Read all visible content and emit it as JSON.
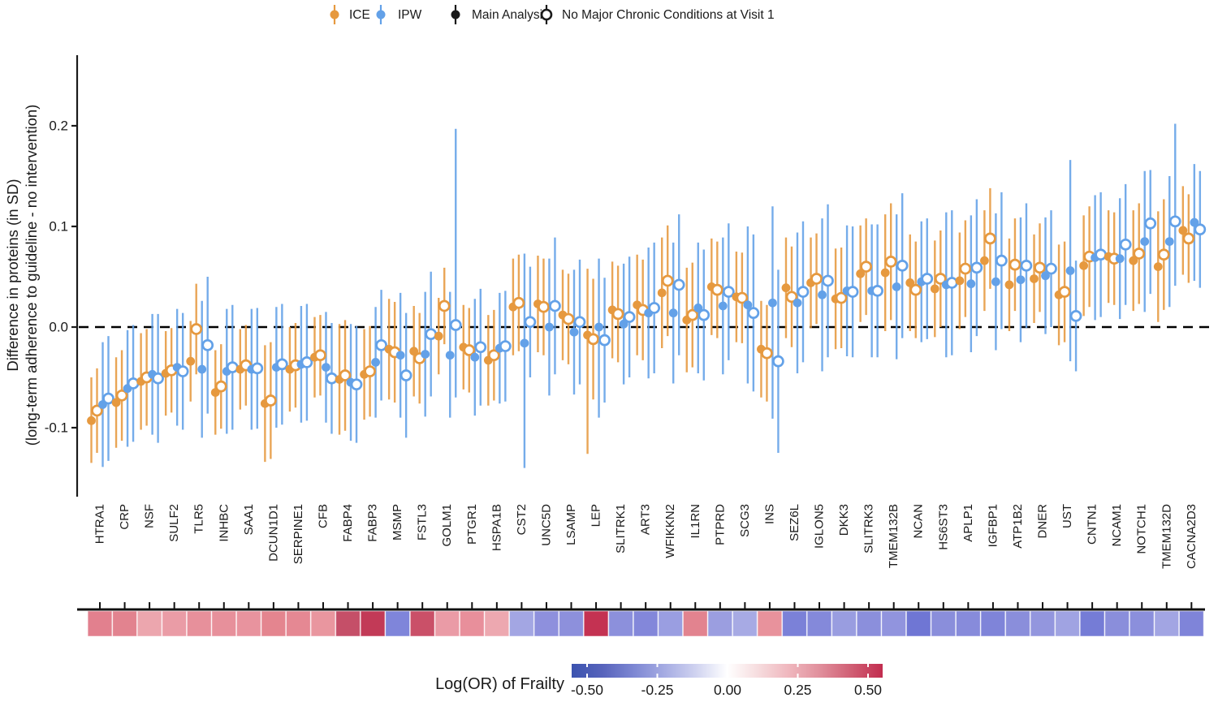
{
  "figure": {
    "legend": [
      {
        "label": "ICE",
        "color": "#E6993F",
        "variant": "filled-color"
      },
      {
        "label": "IPW",
        "color": "#63A1E8",
        "variant": "filled-color"
      },
      {
        "label": "Main Analysis",
        "color": "#1a1a1a",
        "variant": "filled-black"
      },
      {
        "label": "No Major Chronic Conditions at Visit 1",
        "color": "#1a1a1a",
        "variant": "open"
      }
    ],
    "y_axis": {
      "title_line1": "Difference in proteins (in SD)",
      "title_line2": "(long-term adherence to guideline - no intervention)"
    },
    "colorbar": {
      "title": "Log(OR) of Frailty",
      "tick_labels": [
        "-0.50",
        "-0.25",
        "0.00",
        "0.25",
        "0.50"
      ],
      "gradient": [
        "#3B53AF",
        "#5864BC",
        "#7D87D3",
        "#A6ACE3",
        "#D0D3F0",
        "#FFFFFF",
        "#F6DCDE",
        "#EFB6BD",
        "#E08E9B",
        "#D05E74",
        "#C22D4F"
      ]
    }
  },
  "chart_data": {
    "type": "scatter",
    "title": "",
    "xlabel": "",
    "ylabel": "Difference in proteins (in SD) (long-term adherence to guideline - no intervention)",
    "ylim": [
      -0.16,
      0.27
    ],
    "yticks": [
      0.2,
      0.1,
      0.0,
      -0.1
    ],
    "ytick_labels": [
      "0.2",
      "0.1",
      "0.0",
      "-0.1"
    ],
    "reference_line": 0.0,
    "grid": false,
    "legend_position": "top",
    "categories": [
      "HTRA1",
      "CRP",
      "NSF",
      "SULF2",
      "TLR5",
      "INHBC",
      "SAA1",
      "DCUN1D1",
      "SERPINE1",
      "CFB",
      "FABP4",
      "FABP3",
      "MSMP",
      "FSTL3",
      "GOLM1",
      "PTGR1",
      "HSPA1B",
      "CST2",
      "UNC5D",
      "LSAMP",
      "LEP",
      "SLITRK1",
      "ART3",
      "WFIKKN2",
      "IL1RN",
      "PTPRD",
      "SCG3",
      "INS",
      "SEZ6L",
      "IGLON5",
      "DKK3",
      "SLITRK3",
      "TMEM132B",
      "NCAN",
      "HS6ST3",
      "APLP1",
      "IGFBP1",
      "ATP1B2",
      "DNER",
      "UST",
      "CNTN1",
      "NCAM1",
      "NOTCH1",
      "TMEM132D",
      "CACNA2D3"
    ],
    "series": [
      {
        "name": "ICE — Main Analysis",
        "color": "#E6993F",
        "marker": "filled",
        "values": [
          -0.093,
          -0.075,
          -0.054,
          -0.046,
          -0.034,
          -0.065,
          -0.042,
          -0.076,
          -0.042,
          -0.03,
          -0.052,
          -0.047,
          -0.022,
          -0.024,
          -0.009,
          -0.02,
          -0.033,
          0.02,
          0.023,
          0.012,
          -0.008,
          0.017,
          0.022,
          0.034,
          0.007,
          0.04,
          0.03,
          -0.022,
          0.039,
          0.044,
          0.028,
          0.053,
          0.054,
          0.044,
          0.038,
          0.046,
          0.066,
          0.042,
          0.048,
          0.032,
          0.061,
          0.07,
          0.066,
          0.06,
          0.096
        ],
        "ci_low": [
          -0.135,
          -0.12,
          -0.102,
          -0.088,
          -0.074,
          -0.107,
          -0.082,
          -0.134,
          -0.084,
          -0.07,
          -0.107,
          -0.092,
          -0.072,
          -0.069,
          -0.047,
          -0.062,
          -0.078,
          -0.028,
          -0.025,
          -0.033,
          -0.126,
          -0.031,
          -0.028,
          -0.021,
          -0.045,
          -0.008,
          -0.015,
          -0.07,
          -0.011,
          -0.001,
          -0.022,
          0.005,
          -0.004,
          -0.004,
          -0.01,
          -0.002,
          0.016,
          -0.004,
          0.004,
          -0.018,
          0.011,
          0.024,
          0.016,
          0.005,
          0.052
        ],
        "ci_high": [
          -0.05,
          -0.03,
          -0.006,
          -0.004,
          0.006,
          -0.023,
          -0.002,
          -0.018,
          0.0,
          0.01,
          0.003,
          -0.002,
          0.028,
          0.021,
          0.029,
          0.022,
          0.012,
          0.068,
          0.071,
          0.057,
          0.058,
          0.065,
          0.072,
          0.089,
          0.059,
          0.088,
          0.075,
          0.026,
          0.089,
          0.089,
          0.078,
          0.101,
          0.112,
          0.092,
          0.086,
          0.094,
          0.116,
          0.088,
          0.092,
          0.082,
          0.111,
          0.116,
          0.116,
          0.115,
          0.14
        ]
      },
      {
        "name": "ICE — No Major Chronic Conditions at Visit 1",
        "color": "#E6993F",
        "marker": "open",
        "values": [
          -0.083,
          -0.068,
          -0.05,
          -0.043,
          -0.002,
          -0.059,
          -0.038,
          -0.073,
          -0.038,
          -0.028,
          -0.048,
          -0.044,
          -0.025,
          -0.031,
          0.021,
          -0.023,
          -0.028,
          0.024,
          0.02,
          0.008,
          -0.012,
          0.013,
          0.017,
          0.046,
          0.012,
          0.037,
          0.029,
          -0.026,
          0.03,
          0.048,
          0.029,
          0.06,
          0.065,
          0.037,
          0.048,
          0.058,
          0.088,
          0.062,
          0.059,
          0.035,
          0.07,
          0.068,
          0.073,
          0.072,
          0.088
        ],
        "ci_low": [
          -0.125,
          -0.113,
          -0.098,
          -0.085,
          -0.047,
          -0.101,
          -0.078,
          -0.131,
          -0.08,
          -0.068,
          -0.103,
          -0.089,
          -0.075,
          -0.076,
          -0.017,
          -0.065,
          -0.073,
          -0.024,
          -0.028,
          -0.037,
          -0.072,
          -0.035,
          -0.033,
          -0.009,
          -0.04,
          -0.011,
          -0.016,
          -0.074,
          -0.02,
          0.003,
          -0.021,
          0.012,
          0.007,
          -0.011,
          0.0,
          0.01,
          0.038,
          0.016,
          0.015,
          -0.015,
          0.02,
          0.022,
          0.023,
          0.017,
          0.044
        ],
        "ci_high": [
          -0.041,
          -0.023,
          -0.002,
          -0.001,
          0.043,
          -0.017,
          0.002,
          -0.015,
          0.004,
          0.012,
          0.007,
          0.001,
          0.025,
          0.014,
          0.059,
          0.019,
          0.017,
          0.072,
          0.068,
          0.053,
          0.048,
          0.061,
          0.067,
          0.101,
          0.064,
          0.085,
          0.074,
          0.022,
          0.08,
          0.093,
          0.079,
          0.108,
          0.123,
          0.085,
          0.096,
          0.106,
          0.138,
          0.108,
          0.103,
          0.085,
          0.12,
          0.114,
          0.123,
          0.127,
          0.132
        ]
      },
      {
        "name": "IPW — Main Analysis",
        "color": "#63A1E8",
        "marker": "filled",
        "values": [
          -0.077,
          -0.061,
          -0.047,
          -0.04,
          -0.042,
          -0.044,
          -0.042,
          -0.04,
          -0.037,
          -0.04,
          -0.055,
          -0.035,
          -0.028,
          -0.027,
          -0.028,
          -0.03,
          -0.021,
          -0.016,
          0.0,
          -0.005,
          0.0,
          0.003,
          0.014,
          0.014,
          0.019,
          0.021,
          0.022,
          0.024,
          0.024,
          0.032,
          0.036,
          0.036,
          0.04,
          0.045,
          0.042,
          0.043,
          0.045,
          0.047,
          0.051,
          0.056,
          0.069,
          0.068,
          0.085,
          0.085,
          0.104
        ],
        "ci_low": [
          -0.139,
          -0.119,
          -0.107,
          -0.098,
          -0.11,
          -0.106,
          -0.102,
          -0.1,
          -0.095,
          -0.095,
          -0.113,
          -0.09,
          -0.09,
          -0.089,
          -0.09,
          -0.088,
          -0.076,
          -0.14,
          -0.068,
          -0.067,
          -0.09,
          -0.057,
          -0.051,
          -0.056,
          -0.046,
          -0.047,
          -0.056,
          -0.091,
          -0.046,
          -0.044,
          -0.029,
          -0.03,
          -0.032,
          -0.015,
          -0.03,
          -0.025,
          -0.023,
          -0.015,
          -0.007,
          -0.034,
          0.007,
          0.008,
          0.015,
          0.02,
          0.046
        ],
        "ci_high": [
          -0.015,
          -0.003,
          0.013,
          0.018,
          0.026,
          0.018,
          0.018,
          0.02,
          0.021,
          0.015,
          0.003,
          0.02,
          0.034,
          0.035,
          0.035,
          0.028,
          0.034,
          0.073,
          0.068,
          0.057,
          0.068,
          0.063,
          0.079,
          0.084,
          0.084,
          0.089,
          0.1,
          0.12,
          0.094,
          0.108,
          0.101,
          0.102,
          0.112,
          0.105,
          0.114,
          0.111,
          0.113,
          0.109,
          0.109,
          0.166,
          0.131,
          0.128,
          0.155,
          0.15,
          0.162
        ]
      },
      {
        "name": "IPW — No Major Chronic Conditions at Visit 1",
        "color": "#63A1E8",
        "marker": "open",
        "values": [
          -0.071,
          -0.056,
          -0.051,
          -0.044,
          -0.018,
          -0.04,
          -0.041,
          -0.037,
          -0.035,
          -0.051,
          -0.057,
          -0.018,
          -0.048,
          -0.007,
          0.002,
          -0.02,
          -0.019,
          0.005,
          0.021,
          0.005,
          -0.013,
          0.01,
          0.019,
          0.042,
          0.012,
          0.035,
          0.014,
          -0.034,
          0.035,
          0.046,
          0.035,
          0.036,
          0.061,
          0.048,
          0.044,
          0.059,
          0.066,
          0.061,
          0.058,
          0.011,
          0.072,
          0.082,
          0.103,
          0.105,
          0.097
        ],
        "ci_low": [
          -0.133,
          -0.114,
          -0.115,
          -0.102,
          -0.086,
          -0.102,
          -0.101,
          -0.097,
          -0.093,
          -0.106,
          -0.115,
          -0.073,
          -0.11,
          -0.069,
          -0.07,
          -0.078,
          -0.074,
          -0.05,
          -0.047,
          -0.057,
          -0.075,
          -0.05,
          -0.046,
          -0.028,
          -0.053,
          -0.033,
          -0.064,
          -0.125,
          -0.035,
          -0.03,
          -0.03,
          -0.03,
          -0.011,
          -0.012,
          -0.028,
          -0.009,
          -0.002,
          -0.001,
          0.0,
          -0.044,
          0.01,
          0.022,
          0.033,
          0.041,
          0.039
        ],
        "ci_high": [
          -0.009,
          0.002,
          0.013,
          0.014,
          0.05,
          0.022,
          0.019,
          0.023,
          0.023,
          0.004,
          0.001,
          0.037,
          0.014,
          0.055,
          0.197,
          0.038,
          0.036,
          0.06,
          0.089,
          0.067,
          0.049,
          0.07,
          0.084,
          0.112,
          0.077,
          0.103,
          0.092,
          0.057,
          0.105,
          0.122,
          0.1,
          0.102,
          0.133,
          0.108,
          0.116,
          0.127,
          0.134,
          0.123,
          0.116,
          0.066,
          0.134,
          0.142,
          0.156,
          0.202,
          0.155
        ]
      }
    ],
    "heatmap": {
      "label": "Log(OR) of Frailty",
      "scale_range": [
        -0.5,
        0.5
      ],
      "cell_colors": [
        "#e2808e",
        "#e2838f",
        "#eca6ae",
        "#ea9ca6",
        "#e7909b",
        "#e7909b",
        "#e8939e",
        "#e4858f",
        "#e58893",
        "#e9969f",
        "#c54f68",
        "#c23a57",
        "#7f85da",
        "#ca5068",
        "#ea9ba6",
        "#e88f9b",
        "#eda8b0",
        "#a3a6e3",
        "#8e90dd",
        "#8d90dc",
        "#c43252",
        "#8c90dc",
        "#8387da",
        "#9a9ee1",
        "#e2838f",
        "#9b9ee0",
        "#a7aae4",
        "#e8929c",
        "#7b81d8",
        "#8489da",
        "#999de0",
        "#8b8fdc",
        "#9194de",
        "#6f76d4",
        "#8a8edb",
        "#878bdb",
        "#7f84d9",
        "#8a8edb",
        "#9396de",
        "#a0a3e2",
        "#757cd6",
        "#8a8edb",
        "#8b8fdc",
        "#a2a5e3",
        "#7f84d9"
      ]
    }
  }
}
